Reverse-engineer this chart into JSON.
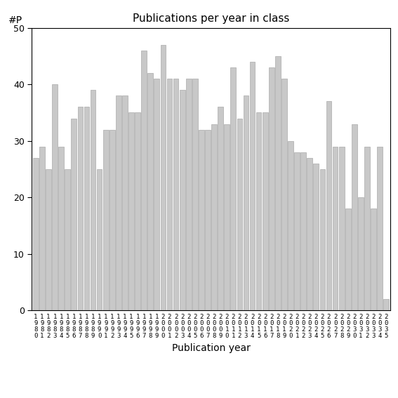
{
  "title": "Publications per year in class",
  "xlabel": "Publication year",
  "ylabel": "#P",
  "ylim": [
    0,
    50
  ],
  "yticks": [
    0,
    10,
    20,
    30,
    40,
    50
  ],
  "bar_color": "#c8c8c8",
  "bar_edgecolor": "#aaaaaa",
  "categories": [
    "1980",
    "1981",
    "1982",
    "1983",
    "1984",
    "1985",
    "1986",
    "1987",
    "1988",
    "1989",
    "1990",
    "1991",
    "1992",
    "1993",
    "1994",
    "1995",
    "1996",
    "1997",
    "1998",
    "1999",
    "2000",
    "2001",
    "2002",
    "2003",
    "2004",
    "2005",
    "2006",
    "2007",
    "2008",
    "2009",
    "2010",
    "2011",
    "2012",
    "2013",
    "2014",
    "2015",
    "2016",
    "2017",
    "2018",
    "2019",
    "2020",
    "2021",
    "2022",
    "2023",
    "2024",
    "2025",
    "2026",
    "2027",
    "2028",
    "2029",
    "2030",
    "2031",
    "2032",
    "2033",
    "2034",
    "2035"
  ],
  "values": [
    27,
    29,
    25,
    40,
    29,
    25,
    34,
    36,
    36,
    39,
    25,
    32,
    32,
    38,
    38,
    35,
    35,
    46,
    42,
    41,
    47,
    41,
    41,
    39,
    41,
    41,
    32,
    32,
    33,
    36,
    33,
    43,
    34,
    38,
    44,
    35,
    35,
    43,
    45,
    41,
    30,
    28,
    28,
    27,
    26,
    25,
    37,
    29,
    29,
    18,
    33,
    20,
    29,
    18,
    29,
    2
  ]
}
